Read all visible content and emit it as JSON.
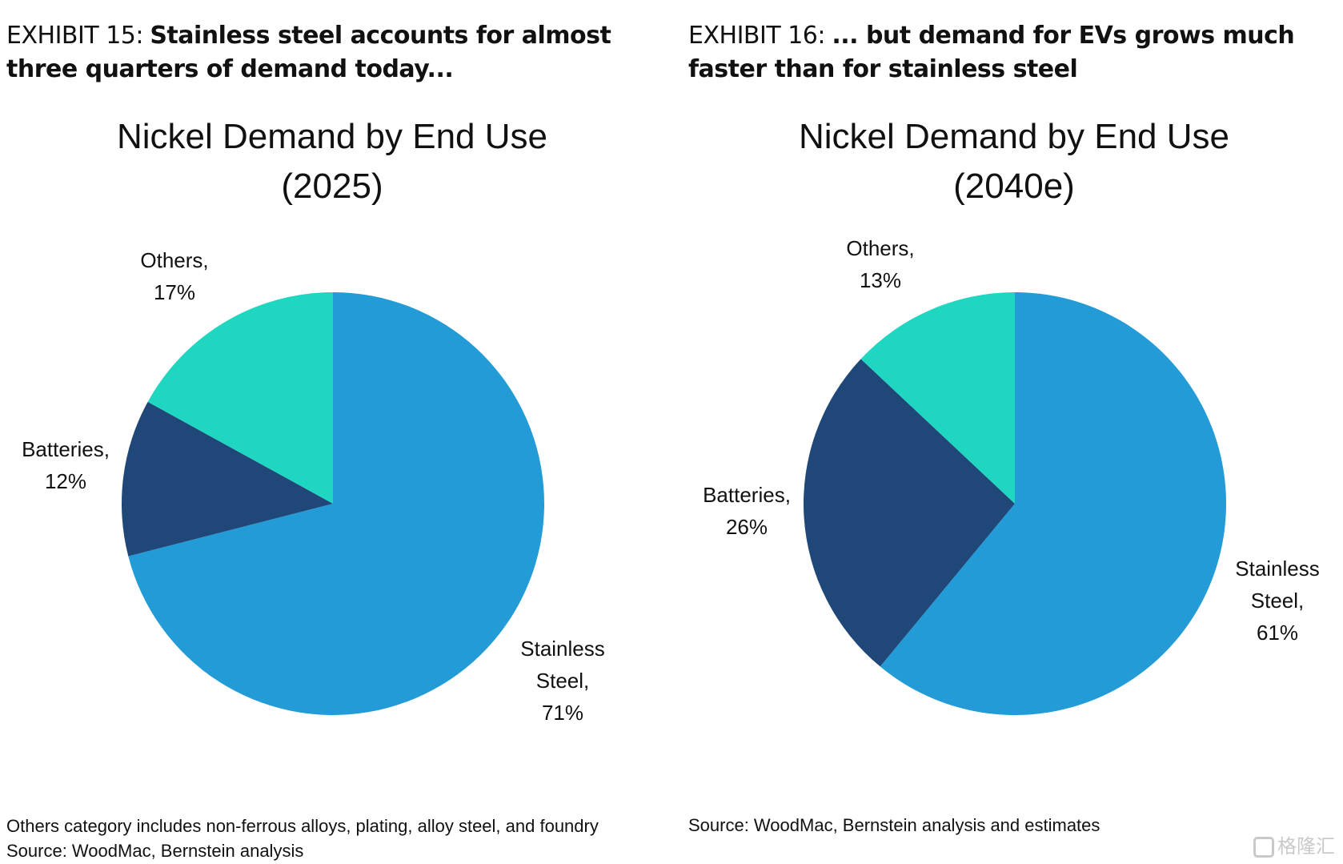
{
  "colors": {
    "stainless_steel": "#229bd7",
    "batteries": "#1f4879",
    "others": "#1fd6c1"
  },
  "exhibits": [
    {
      "label": "EXHIBIT 15:",
      "title": "Stainless steel accounts for almost three quarters of demand today...",
      "chart_title_line1": "Nickel Demand by End Use",
      "chart_title_line2": "(2025)",
      "labels": {
        "stainless_name": "Stainless",
        "stainless_name2": "Steel,",
        "stainless_pct": "71%",
        "batteries_name": "Batteries,",
        "batteries_pct": "12%",
        "others_name": "Others,",
        "others_pct": "17%"
      },
      "footnotes": [
        "Others category includes non-ferrous alloys, plating, alloy steel, and foundry",
        "Source: WoodMac, Bernstein analysis"
      ]
    },
    {
      "label": "EXHIBIT 16:",
      "title": "... but demand for EVs grows much faster than for stainless steel",
      "chart_title_line1": "Nickel Demand by End Use",
      "chart_title_line2": "(2040e)",
      "labels": {
        "stainless_name": "Stainless",
        "stainless_name2": "Steel,",
        "stainless_pct": "61%",
        "batteries_name": "Batteries,",
        "batteries_pct": "26%",
        "others_name": "Others,",
        "others_pct": "13%"
      },
      "footnotes": [
        "Source: WoodMac, Bernstein analysis and estimates"
      ]
    }
  ],
  "chart_data": [
    {
      "type": "pie",
      "title": "Nickel Demand by End Use (2025)",
      "categories": [
        "Stainless Steel",
        "Batteries",
        "Others"
      ],
      "values": [
        71,
        12,
        17
      ],
      "unit": "%"
    },
    {
      "type": "pie",
      "title": "Nickel Demand by End Use (2040e)",
      "categories": [
        "Stainless Steel",
        "Batteries",
        "Others"
      ],
      "values": [
        61,
        26,
        13
      ],
      "unit": "%"
    }
  ],
  "watermark": "格隆汇"
}
